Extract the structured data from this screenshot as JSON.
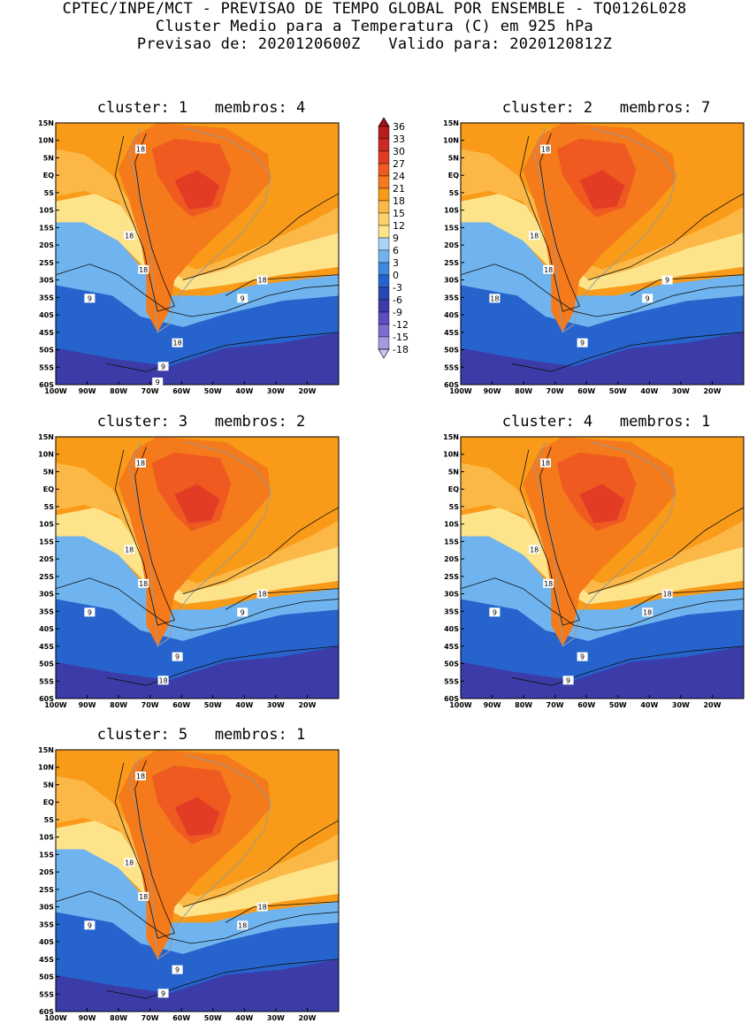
{
  "header": {
    "line1": "CPTEC/INPE/MCT - PREVISAO DE TEMPO GLOBAL POR ENSEMBLE - TQ0126L028",
    "line2": "Cluster Medio para a Temperatura (C) em 925 hPa",
    "line3": "Previsao de: 2020120600Z   Valido para: 2020120812Z"
  },
  "axes": {
    "lat_labels": [
      "15N",
      "10N",
      "5N",
      "EQ",
      "5S",
      "10S",
      "15S",
      "20S",
      "25S",
      "30S",
      "35S",
      "40S",
      "45S",
      "50S",
      "55S",
      "60S"
    ],
    "lon_labels": [
      "100W",
      "90W",
      "80W",
      "70W",
      "60W",
      "50W",
      "40W",
      "30W",
      "20W"
    ]
  },
  "panels": [
    {
      "title": "cluster: 1   membros: 4",
      "contour_labels": [
        "18",
        "18",
        "18",
        "18",
        "9",
        "9",
        "18",
        "9",
        "9"
      ]
    },
    {
      "title": "cluster: 2   membros: 7",
      "contour_labels": [
        "18",
        "18",
        "18",
        "9",
        "18",
        "9",
        "9"
      ]
    },
    {
      "title": "cluster: 3   membros: 2",
      "contour_labels": [
        "18",
        "18",
        "18",
        "18",
        "9",
        "9",
        "9",
        "18"
      ]
    },
    {
      "title": "cluster: 4   membros: 1",
      "contour_labels": [
        "18",
        "18",
        "18",
        "18",
        "9",
        "18",
        "9",
        "9"
      ]
    },
    {
      "title": "cluster: 5   membros: 1",
      "contour_labels": [
        "18",
        "18",
        "18",
        "18",
        "9",
        "18",
        "9",
        "9"
      ]
    }
  ],
  "colorbar": {
    "labels": [
      "36",
      "33",
      "30",
      "27",
      "24",
      "21",
      "18",
      "15",
      "12",
      "9",
      "6",
      "3",
      "0",
      "-3",
      "-6",
      "-9",
      "-12",
      "-15",
      "-18"
    ],
    "colors": [
      "#a50f15",
      "#b81c1e",
      "#cc2a24",
      "#e33c25",
      "#ef5a20",
      "#f47a1c",
      "#f99a18",
      "#fbb846",
      "#fcd06a",
      "#fde38a",
      "#a9d3f4",
      "#6fb4ef",
      "#3f88e0",
      "#2663cc",
      "#2848b4",
      "#3c3ca8",
      "#5b4ec0",
      "#7a6fd0",
      "#a59ae0",
      "#cdc6ef"
    ]
  },
  "chart_data": {
    "type": "heatmap",
    "variable": "Temperatura (C) em 925 hPa",
    "lat_range": [
      "60S",
      "15N"
    ],
    "lon_range": [
      "100W",
      "10W"
    ],
    "contour_interval_labeled": [
      9,
      18
    ],
    "levels": [
      -18,
      -15,
      -12,
      -9,
      -6,
      -3,
      0,
      3,
      6,
      9,
      12,
      15,
      18,
      21,
      24,
      27,
      30,
      33,
      36
    ]
  }
}
